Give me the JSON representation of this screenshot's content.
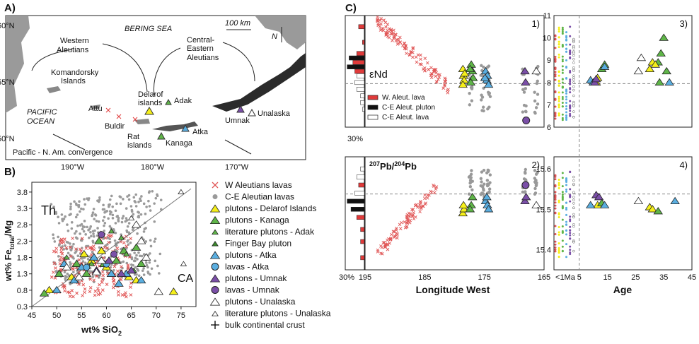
{
  "panels": {
    "a": "A)",
    "b": "B)",
    "c": "C)"
  },
  "map": {
    "lon_ticks": [
      "190°W",
      "180°W",
      "170°W"
    ],
    "lat_ticks": [
      "60°N",
      "55°N",
      "50°N"
    ],
    "sea": "BERING SEA",
    "ocean_line1": "PACIFIC",
    "ocean_line2": "OCEAN",
    "scale": "100 km",
    "north": "N",
    "west_label_1": "Western",
    "west_label_2": "Aleutians",
    "central_label_1": "Central-",
    "central_label_2": "Eastern",
    "central_label_3": "Aleutians",
    "kom1": "Komandorsky",
    "kom2": "Islands",
    "attu": "Attu",
    "buldir": "Buldir",
    "delarof1": "Delarof",
    "delarof2": "islands",
    "rat1": "Rat",
    "rat2": "islands",
    "adak": "Adak",
    "kanaga": "Kanaga",
    "atka": "Atka",
    "umnak": "Umnak",
    "unalaska": "Unalaska",
    "convergence": "Pacific - N. Am. convergence"
  },
  "legend_b": [
    {
      "label": "W Aleutians lavas",
      "symbol": "x",
      "color": "#e05555"
    },
    {
      "label": "C-E Aleutian lavas",
      "symbol": "dot",
      "color": "#9a9a9a"
    },
    {
      "label": "plutons - Delarof Islands",
      "symbol": "tri",
      "color": "#f5ef1a"
    },
    {
      "label": "plutons - Kanaga",
      "symbol": "tri",
      "color": "#5fb548"
    },
    {
      "label": "literature plutons - Adak",
      "symbol": "tri-small",
      "color": "#5fb548"
    },
    {
      "label": "Finger Bay pluton",
      "symbol": "tri-small",
      "color": "#3d8a2e"
    },
    {
      "label": "plutons - Atka",
      "symbol": "tri",
      "color": "#5aaee0"
    },
    {
      "label": "lavas - Atka",
      "symbol": "circle",
      "color": "#5aaee0"
    },
    {
      "label": "plutons - Umnak",
      "symbol": "tri",
      "color": "#7b4fa8"
    },
    {
      "label": "lavas - Umnak",
      "symbol": "circle",
      "color": "#7b4fa8"
    },
    {
      "label": "plutons - Unalaska",
      "symbol": "tri",
      "color": "#ffffff"
    },
    {
      "label": "literature plutons - Unalaska",
      "symbol": "tri-small",
      "color": "#ffffff"
    },
    {
      "label": "bulk continental crust",
      "symbol": "plus",
      "color": "#000000"
    }
  ],
  "legend_c": [
    {
      "label": "W. Aleut. lava",
      "color": "#e03a3a"
    },
    {
      "label": "C-E Aleut. pluton",
      "color": "#111111"
    },
    {
      "label": "C-E Aleut. lava",
      "color": "#ffffff"
    }
  ],
  "chart_data": [
    {
      "id": "B",
      "type": "scatter",
      "xlabel": "wt% SiO",
      "xlabel_sub": "2",
      "ylabel_pre": "wt% Fe",
      "ylabel_sub": "total",
      "ylabel_post": "/Mg",
      "xlim": [
        45,
        78
      ],
      "ylim": [
        0.3,
        4.1
      ],
      "x_ticks": [
        45,
        50,
        55,
        60,
        65,
        70,
        75
      ],
      "y_ticks": [
        0.3,
        0.8,
        1.3,
        1.8,
        2.3,
        2.8,
        3.3,
        3.8
      ],
      "region_labels": [
        "Th",
        "CA"
      ],
      "divider": [
        [
          45,
          0.3
        ],
        [
          77,
          3.9
        ]
      ],
      "series": [
        {
          "name": "plutons - Delarof Islands",
          "marker": "tri",
          "color": "#f5ef1a",
          "points": [
            [
              48.5,
              0.8
            ],
            [
              53,
              1.2
            ],
            [
              55.5,
              1.9
            ],
            [
              57,
              1.7
            ],
            [
              58,
              1.4
            ],
            [
              59,
              2.0
            ],
            [
              60,
              1.5
            ],
            [
              61,
              1.3
            ],
            [
              64.5,
              1.2
            ],
            [
              66,
              1.1
            ],
            [
              73.5,
              0.75
            ]
          ]
        },
        {
          "name": "plutons - Kanaga",
          "marker": "tri",
          "color": "#5fb548",
          "points": [
            [
              47.5,
              0.7
            ],
            [
              50.5,
              1.3
            ],
            [
              54,
              1.6
            ],
            [
              56,
              1.3
            ],
            [
              58.5,
              2.3
            ],
            [
              59.5,
              1.6
            ],
            [
              62,
              1.7
            ],
            [
              63.5,
              2.0
            ],
            [
              66,
              2.1
            ],
            [
              67,
              1.6
            ]
          ]
        },
        {
          "name": "literature plutons - Adak",
          "marker": "tri-small",
          "color": "#5fb548",
          "points": [
            [
              52,
              1.8
            ],
            [
              57,
              1.6
            ],
            [
              61,
              2.6
            ],
            [
              63,
              2.4
            ],
            [
              64,
              1.9
            ],
            [
              65.5,
              1.4
            ]
          ]
        },
        {
          "name": "plutons - Atka",
          "marker": "tri",
          "color": "#5aaee0",
          "points": [
            [
              50,
              0.8
            ],
            [
              51.5,
              1.6
            ],
            [
              53.5,
              1.1
            ],
            [
              55,
              1.5
            ],
            [
              57.5,
              1.8
            ],
            [
              61,
              1.3
            ],
            [
              62.5,
              1.0
            ],
            [
              64,
              1.3
            ],
            [
              67,
              1.1
            ]
          ]
        },
        {
          "name": "lavas - Atka",
          "marker": "circle",
          "color": "#5aaee0",
          "points": [
            [
              56,
              1.5
            ],
            [
              60,
              1.6
            ]
          ]
        },
        {
          "name": "plutons - Umnak",
          "marker": "tri",
          "color": "#7b4fa8",
          "points": [
            [
              58,
              1.4
            ],
            [
              60.5,
              1.7
            ],
            [
              63,
              1.3
            ],
            [
              65,
              1.4
            ]
          ]
        },
        {
          "name": "lavas - Umnak",
          "marker": "circle",
          "color": "#7b4fa8",
          "points": [
            [
              59,
              2.5
            ],
            [
              61.5,
              1.9
            ]
          ]
        },
        {
          "name": "plutons - Unalaska",
          "marker": "tri",
          "color": "#ffffff",
          "points": [
            [
              52,
              1.5
            ],
            [
              54.5,
              1.2
            ],
            [
              58,
              1.35
            ],
            [
              59,
              1.7
            ],
            [
              66,
              2.8
            ],
            [
              67,
              2.3
            ],
            [
              68,
              1.8
            ],
            [
              70.5,
              0.75
            ]
          ]
        },
        {
          "name": "literature plutons - Unalaska",
          "marker": "tri-small",
          "color": "#ffffff",
          "points": [
            [
              75,
              3.8
            ],
            [
              75.5,
              1.6
            ],
            [
              65,
              3.0
            ]
          ]
        }
      ]
    },
    {
      "id": "C1",
      "type": "scatter",
      "panel": "1)",
      "label": "εNd",
      "xlim": [
        195,
        165
      ],
      "ylim": [
        6,
        11
      ],
      "x_ticks": [
        195,
        185,
        175,
        165
      ],
      "y_ticks": [
        6,
        7,
        8,
        9,
        10,
        11
      ],
      "ref_line": 7.95,
      "hist_axis": "30%",
      "triangles": [
        {
          "color": "#f5ef1a",
          "points": [
            [
              178.6,
              8.6
            ],
            [
              178.5,
              8.3
            ],
            [
              178.4,
              8.1
            ],
            [
              178.6,
              7.9
            ],
            [
              178.3,
              8.4
            ]
          ]
        },
        {
          "color": "#5fb548",
          "points": [
            [
              177.2,
              8.8
            ],
            [
              177.0,
              8.5
            ],
            [
              176.9,
              8.2
            ],
            [
              177.3,
              8.0
            ],
            [
              177.4,
              8.6
            ]
          ]
        },
        {
          "color": "#5aaee0",
          "points": [
            [
              174.8,
              8.5
            ],
            [
              174.5,
              8.3
            ],
            [
              174.6,
              8.1
            ],
            [
              174.3,
              7.9
            ],
            [
              174.9,
              8.2
            ]
          ]
        },
        {
          "color": "#7b4fa8",
          "points": [
            [
              168.2,
              8.5
            ],
            [
              168.1,
              8.0
            ]
          ]
        },
        {
          "color": "#ffffff",
          "points": [
            [
              166.3,
              8.5
            ]
          ]
        }
      ],
      "circles": [
        {
          "color": "#7b4fa8",
          "points": [
            [
              168.0,
              6.3
            ]
          ]
        }
      ]
    },
    {
      "id": "C2",
      "type": "scatter",
      "panel": "2)",
      "label_pre": "207",
      "label_mid": "Pb/",
      "label_sup2": "204",
      "label_post": "Pb",
      "xlim": [
        195,
        165
      ],
      "x_ticks": [
        195,
        185,
        175,
        165
      ],
      "xlabel": "Longitude West",
      "hist_axis": "30%",
      "triangles": [
        {
          "color": "#f5ef1a",
          "points": [
            [
              178.6,
              15.49
            ],
            [
              178.4,
              15.5
            ],
            [
              178.5,
              15.51
            ]
          ]
        },
        {
          "color": "#5fb548",
          "points": [
            [
              177.2,
              15.51
            ],
            [
              177.0,
              15.53
            ],
            [
              177.4,
              15.5
            ]
          ]
        },
        {
          "color": "#5aaee0",
          "points": [
            [
              174.8,
              15.52
            ],
            [
              174.5,
              15.51
            ],
            [
              174.6,
              15.53
            ],
            [
              174.3,
              15.5
            ]
          ]
        },
        {
          "color": "#7b4fa8",
          "points": [
            [
              168.2,
              15.52
            ],
            [
              168.0,
              15.53
            ]
          ]
        },
        {
          "color": "#ffffff",
          "points": [
            [
              166.3,
              15.51
            ]
          ]
        }
      ],
      "circles": [
        {
          "color": "#7b4fa8",
          "points": [
            [
              168.1,
              15.56
            ]
          ]
        }
      ]
    },
    {
      "id": "C3",
      "type": "scatter",
      "panel": "3)",
      "xlim": [
        -4,
        45
      ],
      "x_ticks": [
        "<1Ma",
        "5",
        "15",
        "25",
        "35",
        "45"
      ],
      "y_ticks": [
        6,
        7,
        8,
        9,
        10,
        11
      ],
      "ylim": [
        6,
        11
      ],
      "ref_line": 7.95,
      "triangles": [
        {
          "color": "#5fb548",
          "points": [
            [
              13,
              8.6
            ],
            [
              14,
              8.8
            ],
            [
              33,
              8.9
            ],
            [
              34,
              9.3
            ],
            [
              35,
              10.0
            ],
            [
              36,
              8.5
            ],
            [
              33.5,
              8.0
            ]
          ]
        },
        {
          "color": "#f5ef1a",
          "points": [
            [
              11,
              8.0
            ],
            [
              11.5,
              8.2
            ],
            [
              30,
              8.6
            ],
            [
              31,
              8.9
            ],
            [
              32,
              8.8
            ]
          ]
        },
        {
          "color": "#5aaee0",
          "points": [
            [
              9,
              8.1
            ],
            [
              10,
              8.0
            ],
            [
              14,
              8.7
            ],
            [
              37,
              8.0
            ]
          ]
        },
        {
          "color": "#7b4fa8",
          "points": [
            [
              10.5,
              8.0
            ],
            [
              11,
              8.15
            ]
          ]
        },
        {
          "color": "#ffffff",
          "points": [
            [
              26,
              8.5
            ],
            [
              27,
              9.1
            ]
          ]
        }
      ]
    },
    {
      "id": "C4",
      "type": "scatter",
      "panel": "4)",
      "xlim": [
        -4,
        45
      ],
      "x_ticks": [
        "<1Ma",
        "5",
        "15",
        "25",
        "35",
        "45"
      ],
      "xlabel": "Age",
      "y_ticks": [
        15.4,
        15.5,
        15.6
      ],
      "ylim": [
        15.35,
        15.63
      ],
      "ref_line": 15.538,
      "triangles": [
        {
          "color": "#7b4fa8",
          "points": [
            [
              11,
              15.535
            ],
            [
              12,
              15.53
            ]
          ]
        },
        {
          "color": "#f5ef1a",
          "points": [
            [
              11.5,
              15.51
            ],
            [
              30,
              15.505
            ],
            [
              31,
              15.5
            ]
          ]
        },
        {
          "color": "#5fb548",
          "points": [
            [
              13,
              15.515
            ],
            [
              33,
              15.495
            ]
          ]
        },
        {
          "color": "#5aaee0",
          "points": [
            [
              9,
              15.51
            ],
            [
              14,
              15.51
            ],
            [
              39,
              15.52
            ]
          ]
        },
        {
          "color": "#ffffff",
          "points": [
            [
              26,
              15.52
            ]
          ]
        }
      ]
    }
  ]
}
